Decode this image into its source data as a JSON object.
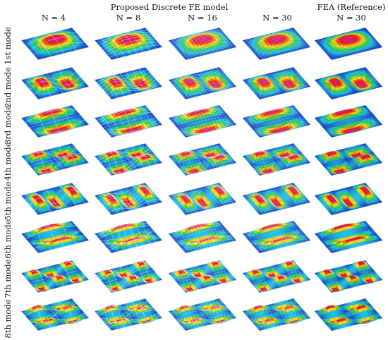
{
  "headers": {
    "group_title": "Proposed Discrete FE model",
    "reference_title": "FEA (Reference)",
    "columns": [
      "N = 4",
      "N = 8",
      "N = 16",
      "N = 30",
      "N = 30"
    ]
  },
  "rows": [
    "1st mode",
    "2nd mode",
    "3rd mode",
    "4th mode",
    "5th mode",
    "6th mode",
    "7th mode",
    "8th mode"
  ],
  "colors": {
    "low": "#1a3fbf",
    "mid_low": "#22c0e0",
    "mid": "#29c24a",
    "mid_high": "#f2e21a",
    "high": "#e01b1b",
    "peak": "#d21e8c",
    "mesh": "#ffffff"
  },
  "mode_shapes": [
    {
      "mode": "1st mode",
      "m": 1,
      "n": 1
    },
    {
      "mode": "2nd mode",
      "m": 2,
      "n": 1
    },
    {
      "mode": "3rd mode",
      "m": 1,
      "n": 2
    },
    {
      "mode": "4th mode",
      "m": 2,
      "n": 2
    },
    {
      "mode": "5th mode",
      "m": 3,
      "n": 1
    },
    {
      "mode": "6th mode",
      "m": 1,
      "n": 3
    },
    {
      "mode": "7th mode",
      "m": 3,
      "n": 2
    },
    {
      "mode": "8th mode",
      "m": 2,
      "n": 3
    }
  ],
  "mesh_divisions": [
    4,
    8,
    16,
    30,
    0
  ]
}
